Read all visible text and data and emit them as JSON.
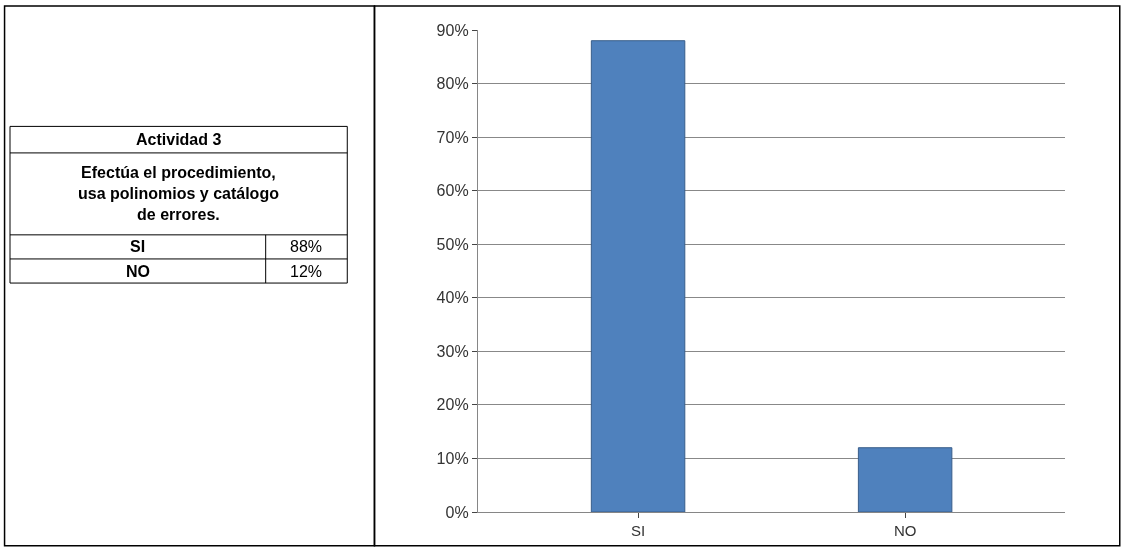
{
  "chart_data": {
    "type": "bar",
    "title": "Actividad 3",
    "subtitle": "Efectúa el procedimiento, usa polinomios y catálogo de errores.",
    "categories": [
      "SI",
      "NO"
    ],
    "values": [
      88,
      12
    ],
    "annotations": [
      "88%",
      "12%"
    ],
    "color": "#4f81bd",
    "ylim": [
      0,
      90
    ],
    "yticks": [
      {
        "value": 0,
        "label": "0%"
      },
      {
        "value": 10,
        "label": "10%"
      },
      {
        "value": 20,
        "label": "20%"
      },
      {
        "value": 30,
        "label": "30%"
      },
      {
        "value": 40,
        "label": "40%"
      },
      {
        "value": 50,
        "label": "50%"
      },
      {
        "value": 60,
        "label": "60%"
      },
      {
        "value": 70,
        "label": "70%"
      },
      {
        "value": 80,
        "label": "80%"
      },
      {
        "value": 90,
        "label": "90%"
      }
    ],
    "grid": "y"
  }
}
